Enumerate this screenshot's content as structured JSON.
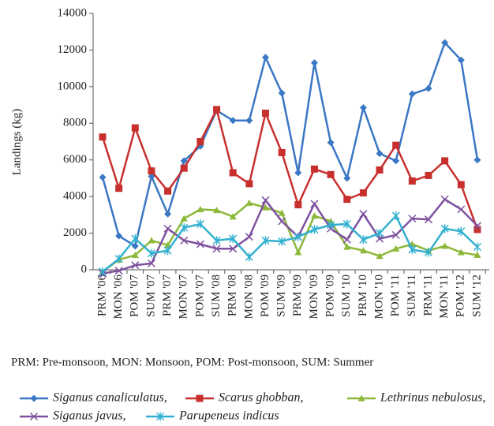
{
  "chart_data": {
    "type": "line",
    "y_label": "Landings (kg)",
    "note": "PRM: Pre-monsoon, MON: Monsoon, POM: Post-monsoon, SUM: Summer",
    "categories": [
      "PRM '06",
      "MON '06",
      "POM '07",
      "SUM '07",
      "PRM '07",
      "MON '07",
      "POM '07",
      "SUM '08",
      "PRM '08",
      "MON '08",
      "POM '09",
      "SUM '09",
      "PRM '09",
      "MON '09",
      "POM '09",
      "SUM '10",
      "PRM '10",
      "MON '10",
      "POM '11",
      "SUM '11",
      "PRM '11",
      "MON '11",
      "POM '12",
      "SUM '12"
    ],
    "ylim": [
      0,
      14000
    ],
    "yticks": [
      0,
      2000,
      4000,
      6000,
      8000,
      10000,
      12000,
      14000
    ],
    "series": [
      {
        "name": "Siganus canaliculatus,",
        "color": "#3a77c4",
        "marker": "diamond",
        "values": [
          5050,
          1850,
          1300,
          5100,
          3050,
          5950,
          6750,
          8700,
          8150,
          8150,
          11600,
          9650,
          5300,
          11300,
          6950,
          5000,
          8850,
          6350,
          5950,
          9600,
          9900,
          12400,
          11450,
          6000
        ]
      },
      {
        "name": "Scarus ghobban,",
        "color": "#c8302e",
        "marker": "square",
        "values": [
          7250,
          4450,
          7750,
          5400,
          4300,
          5550,
          7000,
          8750,
          5300,
          4700,
          8550,
          6400,
          3550,
          5500,
          5200,
          3850,
          4200,
          5450,
          6800,
          4850,
          5150,
          5950,
          4650,
          2200
        ]
      },
      {
        "name": "Lethrinus nebulosus,",
        "color": "#8db83a",
        "marker": "triangle",
        "values": [
          -100,
          550,
          800,
          1600,
          1350,
          2800,
          3300,
          3250,
          2900,
          3650,
          3400,
          3100,
          950,
          2950,
          2650,
          1250,
          1050,
          750,
          1150,
          1400,
          1050,
          1300,
          950,
          800
        ]
      },
      {
        "name": "Siganus javus,",
        "color": "#7f52a0",
        "marker": "x",
        "values": [
          -200,
          -50,
          250,
          350,
          2250,
          1600,
          1400,
          1150,
          1150,
          1800,
          3800,
          2650,
          1800,
          3600,
          2250,
          1650,
          3050,
          1700,
          1900,
          2800,
          2750,
          3850,
          3300,
          2400
        ]
      },
      {
        "name": "Parupeneus indicus",
        "color": "#33b0cf",
        "marker": "star",
        "values": [
          -100,
          600,
          1700,
          900,
          1050,
          2300,
          2500,
          1600,
          1700,
          700,
          1600,
          1550,
          1800,
          2200,
          2450,
          2500,
          1650,
          2000,
          2950,
          1100,
          950,
          2250,
          2100,
          1250
        ]
      }
    ]
  }
}
